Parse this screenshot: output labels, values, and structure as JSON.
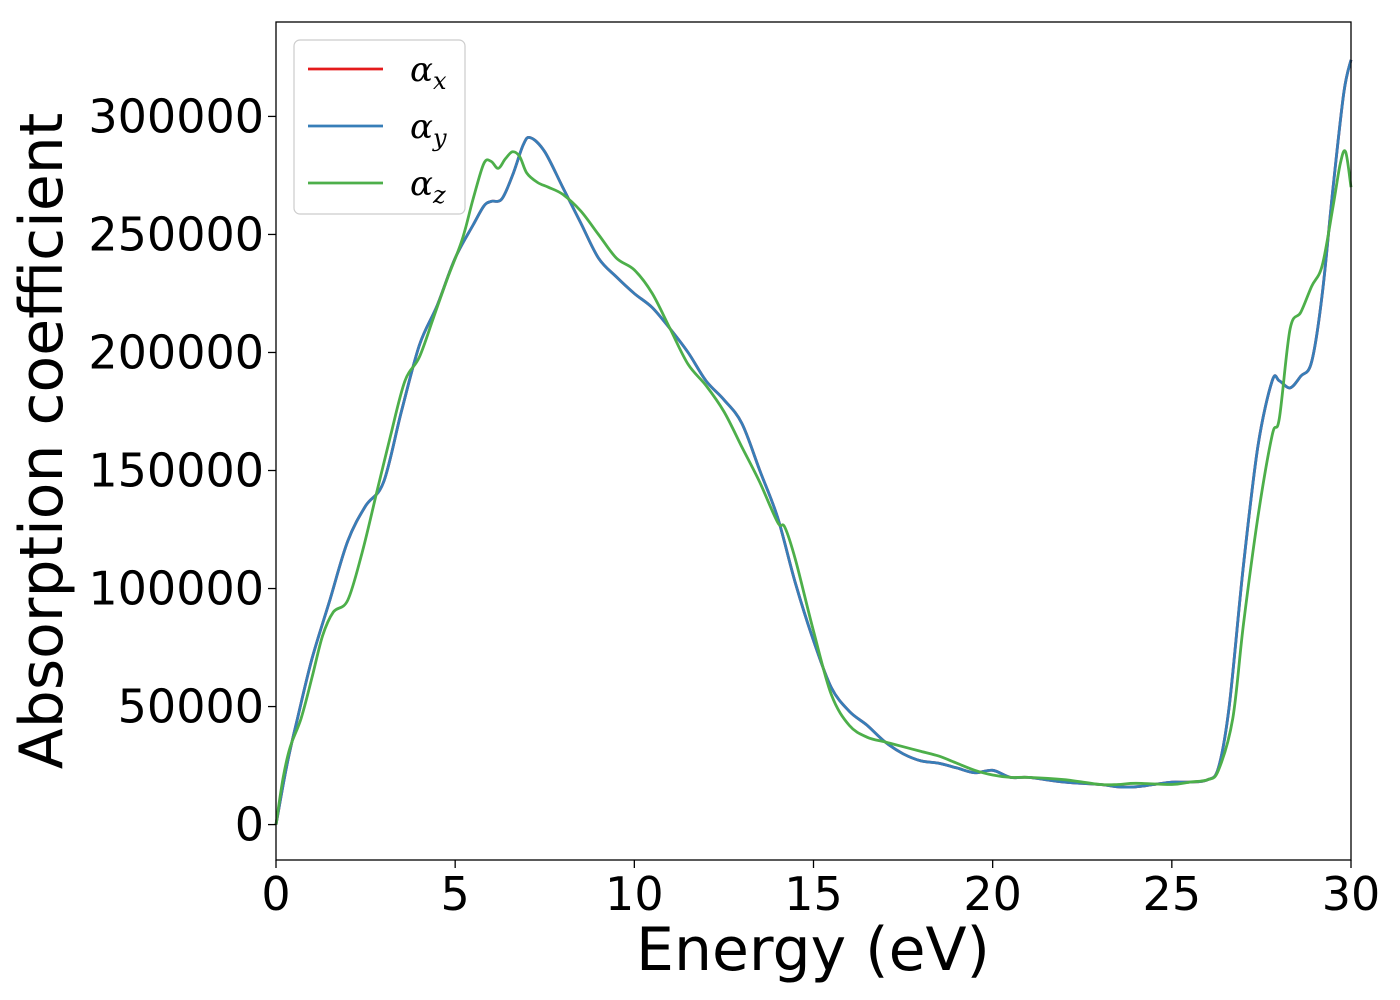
{
  "chart_data": {
    "type": "line",
    "xlabel": "Energy (eV)",
    "ylabel": "Absorption coefficient",
    "xlim": [
      0,
      30
    ],
    "ylim": [
      -15000,
      340000
    ],
    "xticks": [
      0,
      5,
      10,
      15,
      20,
      25,
      30
    ],
    "xtick_labels": [
      "0",
      "5",
      "10",
      "15",
      "20",
      "25",
      "30"
    ],
    "yticks": [
      0,
      50000,
      100000,
      150000,
      200000,
      250000,
      300000
    ],
    "ytick_labels": [
      "0",
      "50000",
      "100000",
      "150000",
      "200000",
      "250000",
      "300000"
    ],
    "grid": false,
    "legend_position": "top-left",
    "series": [
      {
        "name": "αx",
        "symbol": "α",
        "subscript": "x",
        "color": "#e41a1c",
        "x": [
          0,
          0.3,
          0.6,
          1.0,
          1.5,
          2.0,
          2.5,
          3.0,
          3.5,
          4.0,
          4.5,
          5.0,
          5.5,
          5.8,
          6.0,
          6.3,
          6.6,
          6.9,
          7.1,
          7.5,
          8.0,
          8.5,
          9.0,
          9.5,
          10.0,
          10.5,
          11.0,
          11.5,
          12.0,
          12.5,
          13.0,
          13.5,
          14.0,
          14.5,
          15.0,
          15.5,
          16.0,
          16.5,
          17.0,
          17.5,
          18.0,
          18.5,
          19.0,
          19.5,
          20.0,
          20.5,
          21.0,
          22.0,
          23.0,
          23.5,
          24.0,
          24.5,
          25.0,
          25.5,
          26.0,
          26.3,
          26.6,
          27.0,
          27.4,
          27.8,
          28.0,
          28.3,
          28.6,
          28.9,
          29.2,
          29.5,
          29.8,
          30.0
        ],
        "y": [
          0,
          25000,
          45000,
          70000,
          95000,
          120000,
          135000,
          145000,
          175000,
          203000,
          220000,
          240000,
          254000,
          262000,
          264000,
          265000,
          275000,
          288000,
          291000,
          285000,
          270000,
          255000,
          240000,
          232000,
          225000,
          219000,
          210000,
          200000,
          188000,
          180000,
          170000,
          150000,
          130000,
          102000,
          78000,
          58000,
          48000,
          42000,
          35000,
          30000,
          27000,
          26000,
          24000,
          22000,
          23000,
          20000,
          20000,
          18000,
          17000,
          16000,
          16000,
          17000,
          18000,
          18000,
          19000,
          24000,
          50000,
          110000,
          160000,
          188000,
          188000,
          185000,
          190000,
          196000,
          225000,
          270000,
          310000,
          324000
        ]
      },
      {
        "name": "αy",
        "symbol": "α",
        "subscript": "y",
        "color": "#377eb8",
        "x": [
          0,
          0.3,
          0.6,
          1.0,
          1.5,
          2.0,
          2.5,
          3.0,
          3.5,
          4.0,
          4.5,
          5.0,
          5.5,
          5.8,
          6.0,
          6.3,
          6.6,
          6.9,
          7.1,
          7.5,
          8.0,
          8.5,
          9.0,
          9.5,
          10.0,
          10.5,
          11.0,
          11.5,
          12.0,
          12.5,
          13.0,
          13.5,
          14.0,
          14.5,
          15.0,
          15.5,
          16.0,
          16.5,
          17.0,
          17.5,
          18.0,
          18.5,
          19.0,
          19.5,
          20.0,
          20.5,
          21.0,
          22.0,
          23.0,
          23.5,
          24.0,
          24.5,
          25.0,
          25.5,
          26.0,
          26.3,
          26.6,
          27.0,
          27.4,
          27.8,
          28.0,
          28.3,
          28.6,
          28.9,
          29.2,
          29.5,
          29.8,
          30.0
        ],
        "y": [
          0,
          25000,
          45000,
          70000,
          95000,
          120000,
          135000,
          145000,
          175000,
          203000,
          220000,
          240000,
          254000,
          262000,
          264000,
          265000,
          275000,
          288000,
          291000,
          285000,
          270000,
          255000,
          240000,
          232000,
          225000,
          219000,
          210000,
          200000,
          188000,
          180000,
          170000,
          150000,
          130000,
          102000,
          78000,
          58000,
          48000,
          42000,
          35000,
          30000,
          27000,
          26000,
          24000,
          22000,
          23000,
          20000,
          20000,
          18000,
          17000,
          16000,
          16000,
          17000,
          18000,
          18000,
          19000,
          24000,
          50000,
          110000,
          160000,
          188000,
          188000,
          185000,
          190000,
          196000,
          225000,
          270000,
          310000,
          324000
        ]
      },
      {
        "name": "αz",
        "symbol": "α",
        "subscript": "z",
        "color": "#4daf4a",
        "x": [
          0,
          0.2,
          0.4,
          0.7,
          1.0,
          1.3,
          1.6,
          2.0,
          2.4,
          2.8,
          3.2,
          3.6,
          4.0,
          4.4,
          4.8,
          5.2,
          5.5,
          5.8,
          6.0,
          6.2,
          6.4,
          6.6,
          6.8,
          7.0,
          7.3,
          7.6,
          8.0,
          8.5,
          9.0,
          9.5,
          10.0,
          10.5,
          11.0,
          11.5,
          12.0,
          12.5,
          13.0,
          13.5,
          14.0,
          14.2,
          14.5,
          15.0,
          15.5,
          16.0,
          16.5,
          17.0,
          17.5,
          18.0,
          18.5,
          19.0,
          19.5,
          20.0,
          20.5,
          21.0,
          22.0,
          23.0,
          23.5,
          24.0,
          25.0,
          25.5,
          26.0,
          26.3,
          26.7,
          27.0,
          27.4,
          27.8,
          28.0,
          28.3,
          28.6,
          28.9,
          29.2,
          29.5,
          29.7,
          29.85,
          30.0
        ],
        "y": [
          0,
          20000,
          33000,
          45000,
          62000,
          80000,
          90000,
          95000,
          115000,
          140000,
          165000,
          188000,
          198000,
          215000,
          232000,
          248000,
          265000,
          280000,
          281000,
          278000,
          282000,
          285000,
          283000,
          276000,
          272000,
          270000,
          267000,
          260000,
          250000,
          240000,
          235000,
          225000,
          210000,
          195000,
          186000,
          175000,
          160000,
          145000,
          128000,
          126000,
          112000,
          82000,
          55000,
          42000,
          37000,
          35000,
          33000,
          31000,
          29000,
          26000,
          23000,
          21000,
          20000,
          20000,
          19000,
          17000,
          17000,
          17500,
          17000,
          18000,
          19000,
          23000,
          45000,
          85000,
          130000,
          165000,
          172000,
          210000,
          217000,
          228000,
          237000,
          262000,
          280000,
          285000,
          270000
        ]
      }
    ]
  }
}
